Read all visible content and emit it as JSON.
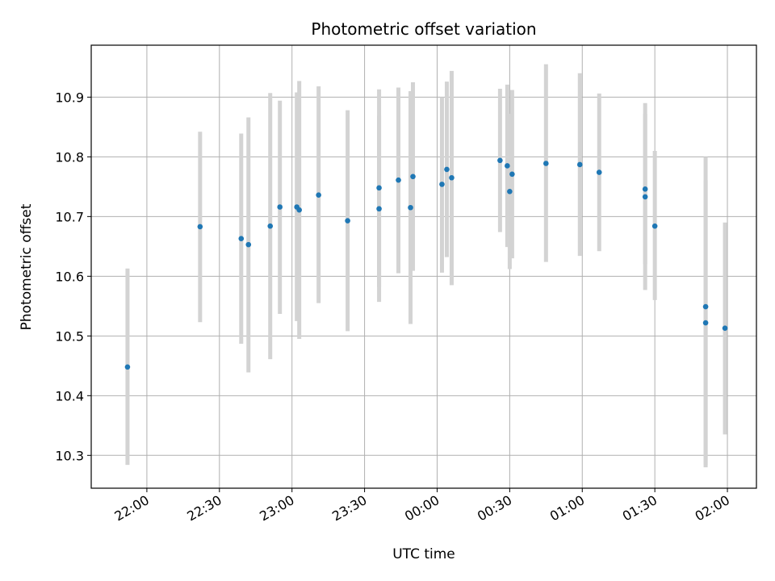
{
  "chart_data": {
    "type": "scatter",
    "title": "Photometric offset variation",
    "xlabel": "UTC time",
    "ylabel": "Photometric offset",
    "grid": true,
    "x_axis": {
      "kind": "time",
      "range": [
        "21:37",
        "02:12"
      ],
      "ticks": [
        "22:00",
        "22:30",
        "23:00",
        "23:30",
        "00:00",
        "00:30",
        "01:00",
        "01:30",
        "02:00"
      ]
    },
    "y_axis": {
      "range": [
        10.245,
        10.987
      ],
      "ticks": [
        "10.3",
        "10.4",
        "10.5",
        "10.6",
        "10.7",
        "10.8",
        "10.9"
      ]
    },
    "marker_color": "#1f77b4",
    "errorbar_color": "#d3d3d3",
    "series": [
      {
        "points": [
          {
            "x": "21:52",
            "y": 10.448,
            "ylo": 10.284,
            "yhi": 10.613
          },
          {
            "x": "22:22",
            "y": 10.683,
            "ylo": 10.523,
            "yhi": 10.842
          },
          {
            "x": "22:39",
            "y": 10.663,
            "ylo": 10.487,
            "yhi": 10.839
          },
          {
            "x": "22:42",
            "y": 10.653,
            "ylo": 10.439,
            "yhi": 10.866
          },
          {
            "x": "22:51",
            "y": 10.684,
            "ylo": 10.461,
            "yhi": 10.907
          },
          {
            "x": "22:55",
            "y": 10.716,
            "ylo": 10.537,
            "yhi": 10.894
          },
          {
            "x": "23:02",
            "y": 10.716,
            "ylo": 10.525,
            "yhi": 10.908
          },
          {
            "x": "23:03",
            "y": 10.711,
            "ylo": 10.495,
            "yhi": 10.927
          },
          {
            "x": "23:11",
            "y": 10.736,
            "ylo": 10.555,
            "yhi": 10.918
          },
          {
            "x": "23:23",
            "y": 10.693,
            "ylo": 10.508,
            "yhi": 10.878
          },
          {
            "x": "23:36",
            "y": 10.748,
            "ylo": 10.582,
            "yhi": 10.913
          },
          {
            "x": "23:36",
            "y": 10.713,
            "ylo": 10.557,
            "yhi": 10.869
          },
          {
            "x": "23:44",
            "y": 10.761,
            "ylo": 10.605,
            "yhi": 10.916
          },
          {
            "x": "23:49",
            "y": 10.715,
            "ylo": 10.52,
            "yhi": 10.91
          },
          {
            "x": "23:50",
            "y": 10.767,
            "ylo": 10.609,
            "yhi": 10.925
          },
          {
            "x": "00:02",
            "y": 10.754,
            "ylo": 10.606,
            "yhi": 10.9
          },
          {
            "x": "00:04",
            "y": 10.779,
            "ylo": 10.632,
            "yhi": 10.926
          },
          {
            "x": "00:06",
            "y": 10.765,
            "ylo": 10.585,
            "yhi": 10.944
          },
          {
            "x": "00:26",
            "y": 10.794,
            "ylo": 10.674,
            "yhi": 10.914
          },
          {
            "x": "00:29",
            "y": 10.785,
            "ylo": 10.649,
            "yhi": 10.921
          },
          {
            "x": "00:30",
            "y": 10.742,
            "ylo": 10.612,
            "yhi": 10.872
          },
          {
            "x": "00:31",
            "y": 10.771,
            "ylo": 10.63,
            "yhi": 10.912
          },
          {
            "x": "00:45",
            "y": 10.789,
            "ylo": 10.624,
            "yhi": 10.955
          },
          {
            "x": "00:59",
            "y": 10.787,
            "ylo": 10.634,
            "yhi": 10.94
          },
          {
            "x": "01:07",
            "y": 10.774,
            "ylo": 10.642,
            "yhi": 10.906
          },
          {
            "x": "01:26",
            "y": 10.746,
            "ylo": 10.62,
            "yhi": 10.872
          },
          {
            "x": "01:26",
            "y": 10.733,
            "ylo": 10.577,
            "yhi": 10.89
          },
          {
            "x": "01:30",
            "y": 10.684,
            "ylo": 10.56,
            "yhi": 10.81
          },
          {
            "x": "01:51",
            "y": 10.549,
            "ylo": 10.28,
            "yhi": 10.8
          },
          {
            "x": "01:51",
            "y": 10.522,
            "ylo": 10.284,
            "yhi": 10.761
          },
          {
            "x": "01:59",
            "y": 10.513,
            "ylo": 10.335,
            "yhi": 10.69
          }
        ]
      }
    ]
  }
}
